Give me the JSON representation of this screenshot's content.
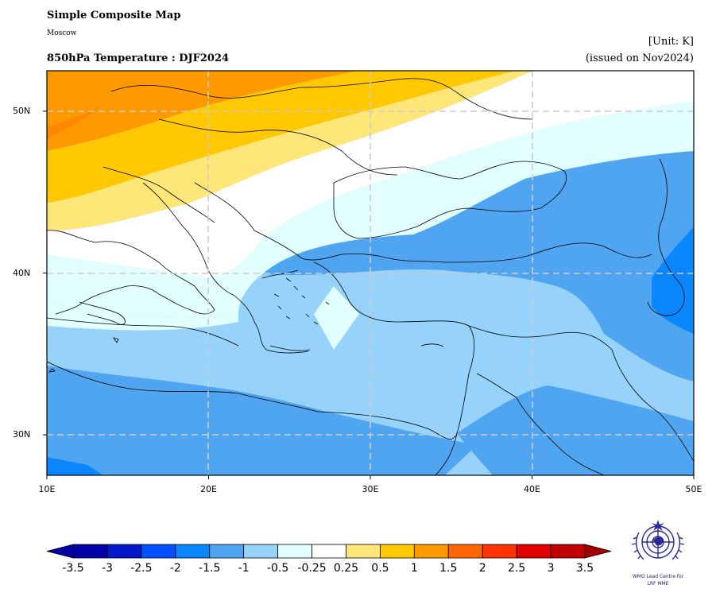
{
  "header": {
    "title": "Simple Composite Map",
    "subtitle": "Moscow",
    "map_title": "850hPa Temperature : DJF2024",
    "unit": "[Unit: K]",
    "issued": "(issued on Nov2024)"
  },
  "map": {
    "region": "Eastern Mediterranean / Europe",
    "lon_range": [
      10,
      50
    ],
    "lat_range": [
      27.5,
      52.5
    ],
    "x_ticks": [
      {
        "value": 10,
        "label": "10E"
      },
      {
        "value": 20,
        "label": "20E"
      },
      {
        "value": 30,
        "label": "30E"
      },
      {
        "value": 40,
        "label": "40E"
      },
      {
        "value": 50,
        "label": "50E"
      }
    ],
    "y_ticks": [
      {
        "value": 30,
        "label": "30N"
      },
      {
        "value": 40,
        "label": "40N"
      },
      {
        "value": 50,
        "label": "50N"
      }
    ],
    "gridlines": true
  },
  "colorbar": {
    "labels": [
      "-3.5",
      "-3",
      "-2.5",
      "-2",
      "-1.5",
      "-1",
      "-0.5",
      "-0.25",
      "0.25",
      "0.5",
      "1",
      "1.5",
      "2",
      "2.5",
      "3",
      "3.5"
    ],
    "colors": [
      "#0000a6",
      "#0019c8",
      "#0050ff",
      "#0a87ff",
      "#50a5f0",
      "#96d2fa",
      "#e1ffff",
      "#ffffff",
      "#ffe678",
      "#ffc800",
      "#ff9900",
      "#ff6600",
      "#ff3200",
      "#e10000",
      "#c00000"
    ],
    "extend_low": "#0000a6",
    "extend_high": "#a50000"
  },
  "logo": {
    "line1": "WMO Lead Centre for",
    "line2": "LRF MME"
  }
}
